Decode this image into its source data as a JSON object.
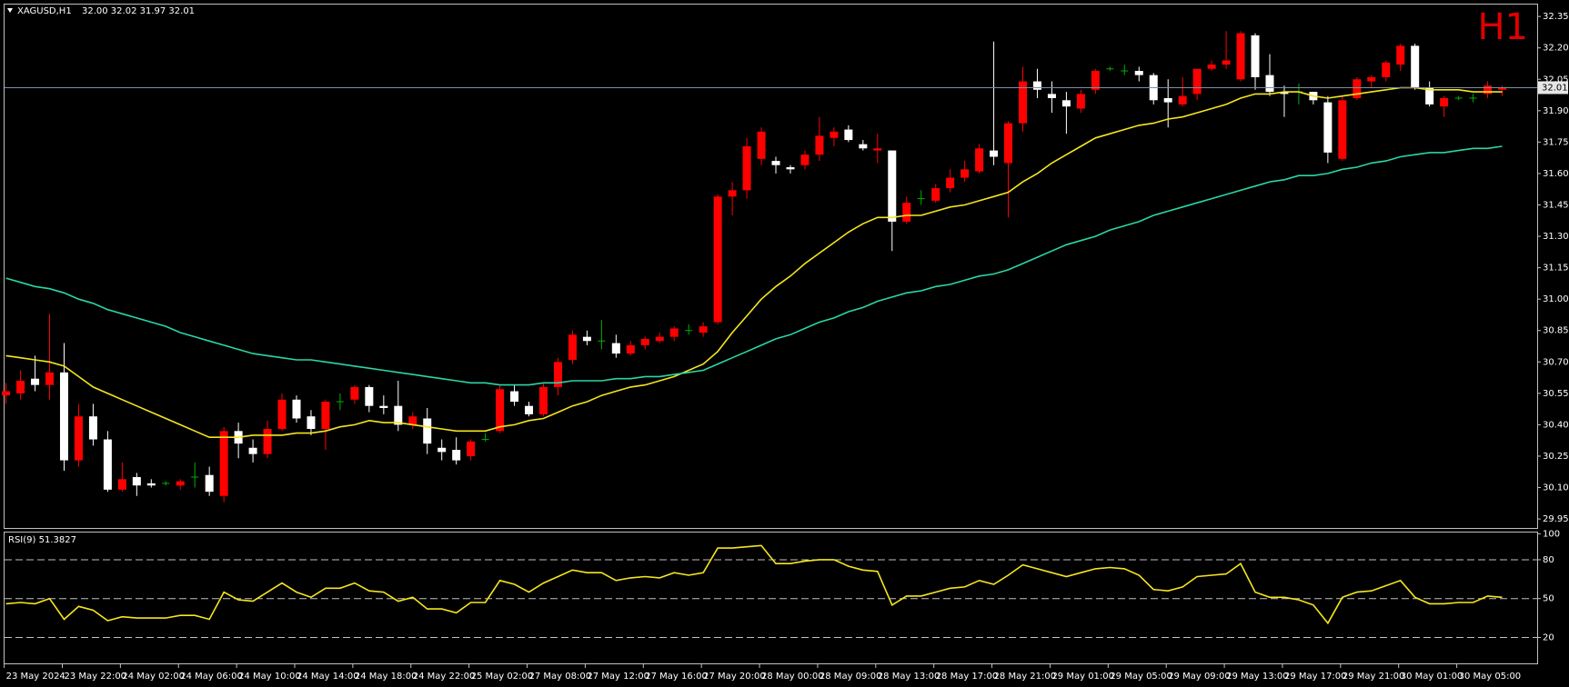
{
  "chart_data": [
    {
      "type": "candlestick",
      "title": "XAGUSD,H1",
      "subtitle": "32.00 32.02 31.97 32.01",
      "watermark": "H1",
      "categories": [
        "23 May 2024",
        null,
        null,
        null,
        "23 May 22:00",
        null,
        null,
        null,
        "24 May 02:00",
        null,
        null,
        null,
        "24 May 06:00",
        null,
        null,
        null,
        "24 May 10:00",
        null,
        null,
        null,
        "24 May 14:00",
        null,
        null,
        null,
        "24 May 18:00",
        null,
        null,
        null,
        "24 May 22:00",
        null,
        null,
        null,
        "25 May 02:00",
        null,
        null,
        null,
        "27 May 08:00",
        null,
        null,
        null,
        "27 May 12:00",
        null,
        null,
        null,
        "27 May 16:00",
        null,
        null,
        null,
        "27 May 20:00",
        null,
        null,
        null,
        "28 May 00:00",
        null,
        null,
        null,
        "28 May 09:00",
        null,
        null,
        null,
        "28 May 13:00",
        null,
        null,
        null,
        "28 May 17:00",
        null,
        null,
        null,
        "28 May 21:00",
        null,
        null,
        null,
        "29 May 01:00",
        null,
        null,
        null,
        "29 May 05:00",
        null,
        null,
        null,
        "29 May 09:00",
        null,
        null,
        null,
        "29 May 13:00",
        null,
        null,
        null,
        "29 May 17:00",
        null,
        null,
        null,
        "29 May 21:00",
        null,
        null,
        null,
        "30 May 01:00",
        null,
        null,
        null,
        "30 May 05:00",
        null,
        null,
        null
      ],
      "open": [
        30.54,
        30.55,
        30.62,
        30.59,
        30.65,
        30.23,
        30.44,
        30.33,
        30.09,
        30.15,
        30.12,
        30.12,
        30.11,
        30.15,
        30.16,
        30.06,
        30.37,
        30.29,
        30.26,
        30.38,
        30.52,
        30.44,
        30.38,
        30.51,
        30.52,
        30.58,
        30.49,
        30.49,
        30.4,
        30.43,
        30.29,
        30.28,
        30.25,
        30.33,
        30.37,
        30.56,
        30.49,
        30.45,
        30.58,
        30.71,
        30.82,
        30.8,
        30.79,
        30.74,
        30.78,
        30.8,
        30.82,
        30.85,
        30.84,
        30.89,
        31.49,
        31.52,
        31.67,
        31.66,
        31.63,
        31.64,
        31.69,
        31.77,
        31.81,
        31.74,
        31.71,
        31.71,
        31.37,
        31.48,
        31.47,
        31.53,
        31.58,
        31.61,
        31.71,
        31.65,
        31.84,
        32.04,
        31.98,
        31.95,
        31.91,
        32.0,
        32.1,
        32.09,
        32.09,
        32.07,
        31.96,
        31.93,
        31.98,
        32.1,
        32.12,
        32.05,
        32.26,
        32.07,
        31.99,
        31.99,
        31.99,
        31.94,
        31.67,
        31.96,
        32.04,
        32.06,
        32.12,
        32.21,
        32.01,
        31.92,
        31.96,
        31.96,
        31.98,
        32.0
      ],
      "high": [
        30.6,
        30.66,
        30.73,
        30.93,
        30.79,
        30.5,
        30.5,
        30.37,
        30.22,
        30.17,
        30.14,
        30.13,
        30.14,
        30.22,
        30.2,
        30.39,
        30.41,
        30.33,
        30.42,
        30.55,
        30.54,
        30.47,
        30.52,
        30.55,
        30.59,
        30.59,
        30.54,
        30.61,
        30.46,
        30.48,
        30.33,
        30.34,
        30.33,
        30.36,
        30.59,
        30.59,
        30.51,
        30.6,
        30.72,
        30.85,
        30.85,
        30.9,
        30.83,
        30.8,
        30.82,
        30.84,
        30.87,
        30.88,
        30.89,
        31.5,
        31.56,
        31.77,
        31.82,
        31.68,
        31.64,
        31.71,
        31.87,
        31.82,
        31.83,
        31.76,
        31.79,
        31.71,
        31.49,
        31.52,
        31.55,
        31.62,
        31.66,
        31.74,
        32.23,
        31.85,
        32.11,
        32.1,
        32.04,
        31.99,
        32.0,
        32.1,
        32.11,
        32.12,
        32.11,
        32.08,
        32.05,
        32.06,
        32.1,
        32.14,
        32.28,
        32.28,
        32.27,
        32.17,
        32.02,
        32.03,
        31.99,
        31.97,
        31.97,
        32.06,
        32.07,
        32.14,
        32.22,
        32.22,
        32.04,
        31.97,
        31.97,
        31.98,
        32.04,
        32.02
      ],
      "low": [
        30.5,
        30.52,
        30.56,
        30.52,
        30.18,
        30.2,
        30.3,
        30.08,
        30.08,
        30.06,
        30.1,
        30.11,
        30.09,
        30.1,
        30.06,
        30.03,
        30.24,
        30.22,
        30.24,
        30.37,
        30.41,
        30.35,
        30.28,
        30.47,
        30.5,
        30.46,
        30.45,
        30.37,
        30.38,
        30.26,
        30.23,
        30.21,
        30.23,
        30.32,
        30.36,
        30.49,
        30.44,
        30.44,
        30.54,
        30.69,
        30.78,
        30.76,
        30.72,
        30.73,
        30.76,
        30.79,
        30.8,
        30.83,
        30.82,
        30.88,
        31.4,
        31.48,
        31.64,
        31.6,
        31.6,
        31.62,
        31.66,
        31.73,
        31.75,
        31.71,
        31.65,
        31.23,
        31.36,
        31.45,
        31.46,
        31.51,
        31.56,
        31.6,
        31.64,
        31.39,
        31.8,
        31.96,
        31.89,
        31.79,
        31.89,
        31.98,
        32.09,
        32.07,
        32.04,
        31.93,
        31.82,
        31.92,
        31.95,
        32.09,
        32.1,
        32.04,
        32.0,
        31.97,
        31.87,
        31.93,
        31.93,
        31.65,
        31.66,
        31.95,
        32.01,
        32.04,
        32.09,
        32.0,
        31.92,
        31.87,
        31.95,
        31.94,
        31.96,
        31.97
      ],
      "close": [
        30.56,
        30.61,
        30.59,
        30.65,
        30.23,
        30.44,
        30.33,
        30.09,
        30.14,
        30.11,
        30.11,
        30.12,
        30.13,
        30.15,
        30.08,
        30.37,
        30.31,
        30.26,
        30.38,
        30.52,
        30.43,
        30.38,
        30.51,
        30.51,
        30.58,
        30.49,
        30.48,
        30.4,
        30.44,
        30.31,
        30.27,
        30.23,
        30.32,
        30.33,
        30.57,
        30.51,
        30.45,
        30.58,
        30.7,
        30.83,
        30.8,
        30.8,
        30.74,
        30.78,
        30.81,
        30.82,
        30.86,
        30.85,
        30.87,
        31.49,
        31.52,
        31.73,
        31.8,
        31.64,
        31.62,
        31.69,
        31.78,
        31.8,
        31.76,
        31.72,
        31.72,
        31.37,
        31.46,
        31.48,
        31.53,
        31.58,
        31.62,
        31.72,
        31.68,
        31.84,
        32.04,
        32.0,
        31.96,
        31.92,
        31.98,
        32.09,
        32.1,
        32.09,
        32.07,
        31.95,
        31.94,
        31.97,
        32.1,
        32.12,
        32.14,
        32.27,
        32.06,
        31.99,
        31.98,
        31.99,
        31.95,
        31.7,
        31.95,
        32.05,
        32.06,
        32.13,
        32.21,
        32.01,
        31.93,
        31.96,
        31.96,
        31.96,
        32.02,
        32.01
      ],
      "lines": [
        {
          "color": "#f5e61e",
          "values": [
            30.73,
            30.72,
            30.71,
            30.7,
            30.68,
            30.63,
            30.58,
            30.55,
            30.52,
            30.49,
            30.46,
            30.43,
            30.4,
            30.37,
            30.34,
            30.34,
            30.34,
            30.35,
            30.35,
            30.35,
            30.36,
            30.36,
            30.37,
            30.39,
            30.4,
            30.42,
            30.41,
            30.41,
            30.4,
            30.39,
            30.38,
            30.37,
            30.37,
            30.37,
            30.39,
            30.4,
            30.42,
            30.43,
            30.46,
            30.49,
            30.51,
            30.54,
            30.56,
            30.58,
            30.59,
            30.61,
            30.63,
            30.66,
            30.69,
            30.75,
            30.84,
            30.92,
            31.0,
            31.06,
            31.11,
            31.17,
            31.22,
            31.27,
            31.32,
            31.36,
            31.39,
            31.39,
            31.4,
            31.4,
            31.42,
            31.44,
            31.45,
            31.47,
            31.49,
            31.51,
            31.56,
            31.6,
            31.65,
            31.69,
            31.73,
            31.77,
            31.79,
            31.81,
            31.83,
            31.84,
            31.86,
            31.87,
            31.89,
            31.91,
            31.93,
            31.96,
            31.98,
            31.98,
            31.99,
            31.99,
            31.97,
            31.96,
            31.97,
            31.98,
            31.99,
            32.0,
            32.01,
            32.01,
            32.0,
            32.0,
            32.0,
            31.99,
            31.99,
            31.99
          ]
        },
        {
          "color": "#2ad6a6",
          "values": [
            31.1,
            31.08,
            31.06,
            31.05,
            31.03,
            31.0,
            30.98,
            30.95,
            30.93,
            30.91,
            30.89,
            30.87,
            30.84,
            30.82,
            30.8,
            30.78,
            30.76,
            30.74,
            30.73,
            30.72,
            30.71,
            30.71,
            30.7,
            30.69,
            30.68,
            30.67,
            30.66,
            30.65,
            30.64,
            30.63,
            30.62,
            30.61,
            30.6,
            30.6,
            30.59,
            30.59,
            30.59,
            30.6,
            30.6,
            30.61,
            30.61,
            30.61,
            30.62,
            30.62,
            30.63,
            30.63,
            30.64,
            30.65,
            30.66,
            30.69,
            30.72,
            30.75,
            30.78,
            30.81,
            30.83,
            30.86,
            30.89,
            30.91,
            30.94,
            30.96,
            30.99,
            31.01,
            31.03,
            31.04,
            31.06,
            31.07,
            31.09,
            31.11,
            31.12,
            31.14,
            31.17,
            31.2,
            31.23,
            31.26,
            31.28,
            31.3,
            31.33,
            31.35,
            31.37,
            31.4,
            31.42,
            31.44,
            31.46,
            31.48,
            31.5,
            31.52,
            31.54,
            31.56,
            31.57,
            31.59,
            31.59,
            31.6,
            31.62,
            31.63,
            31.65,
            31.66,
            31.68,
            31.69,
            31.7,
            31.7,
            31.71,
            31.72,
            31.72,
            31.73
          ]
        }
      ],
      "colors": {
        "up": "#ff0000",
        "down": "#ffffff",
        "doji": "#00b000"
      },
      "current_price": 32.01,
      "current_price_color": "#7d8ea0",
      "ylim": [
        29.907,
        32.407
      ],
      "yticks": [
        32.35,
        {
          "value": 32.2,
          "label": "32.20"
        },
        32.05,
        {
          "value": 31.9,
          "label": "31.90"
        },
        31.75,
        {
          "value": 31.6,
          "label": "31.60"
        },
        31.45,
        {
          "value": 31.3,
          "label": "31.30"
        },
        31.15,
        {
          "value": 31.0,
          "label": "31.00"
        },
        30.85,
        {
          "value": 30.7,
          "label": "30.70"
        },
        30.55,
        {
          "value": 30.4,
          "label": "30.40"
        },
        30.25,
        {
          "value": 30.1,
          "label": "30.10"
        },
        29.95
      ]
    },
    {
      "type": "line",
      "title": "RSI(9) 51.3827",
      "color": "#f5e61e",
      "values": [
        46,
        47,
        46,
        50,
        34,
        44,
        41,
        33,
        36,
        35,
        35,
        35,
        37,
        37,
        34,
        55,
        49,
        48,
        55,
        62,
        55,
        51,
        58,
        58,
        62,
        56,
        55,
        48,
        51,
        42,
        42,
        39,
        47,
        47,
        64,
        61,
        55,
        62,
        67,
        72,
        70,
        70,
        64,
        66,
        67,
        66,
        70,
        68,
        70,
        89,
        89,
        90,
        91,
        77,
        77,
        79,
        80,
        80,
        75,
        72,
        71,
        45,
        52,
        52,
        55,
        58,
        59,
        64,
        61,
        68,
        76,
        73,
        70,
        67,
        70,
        73,
        74,
        73,
        68,
        57,
        56,
        59,
        67,
        68,
        69,
        77,
        55,
        51,
        51,
        49,
        45,
        31,
        51,
        55,
        56,
        60,
        64,
        51,
        46,
        46,
        47,
        47,
        52,
        51
      ],
      "ylim": [
        0,
        101
      ],
      "yticks": [
        100,
        80,
        50,
        20
      ],
      "levels": [
        80,
        50,
        20
      ]
    }
  ]
}
